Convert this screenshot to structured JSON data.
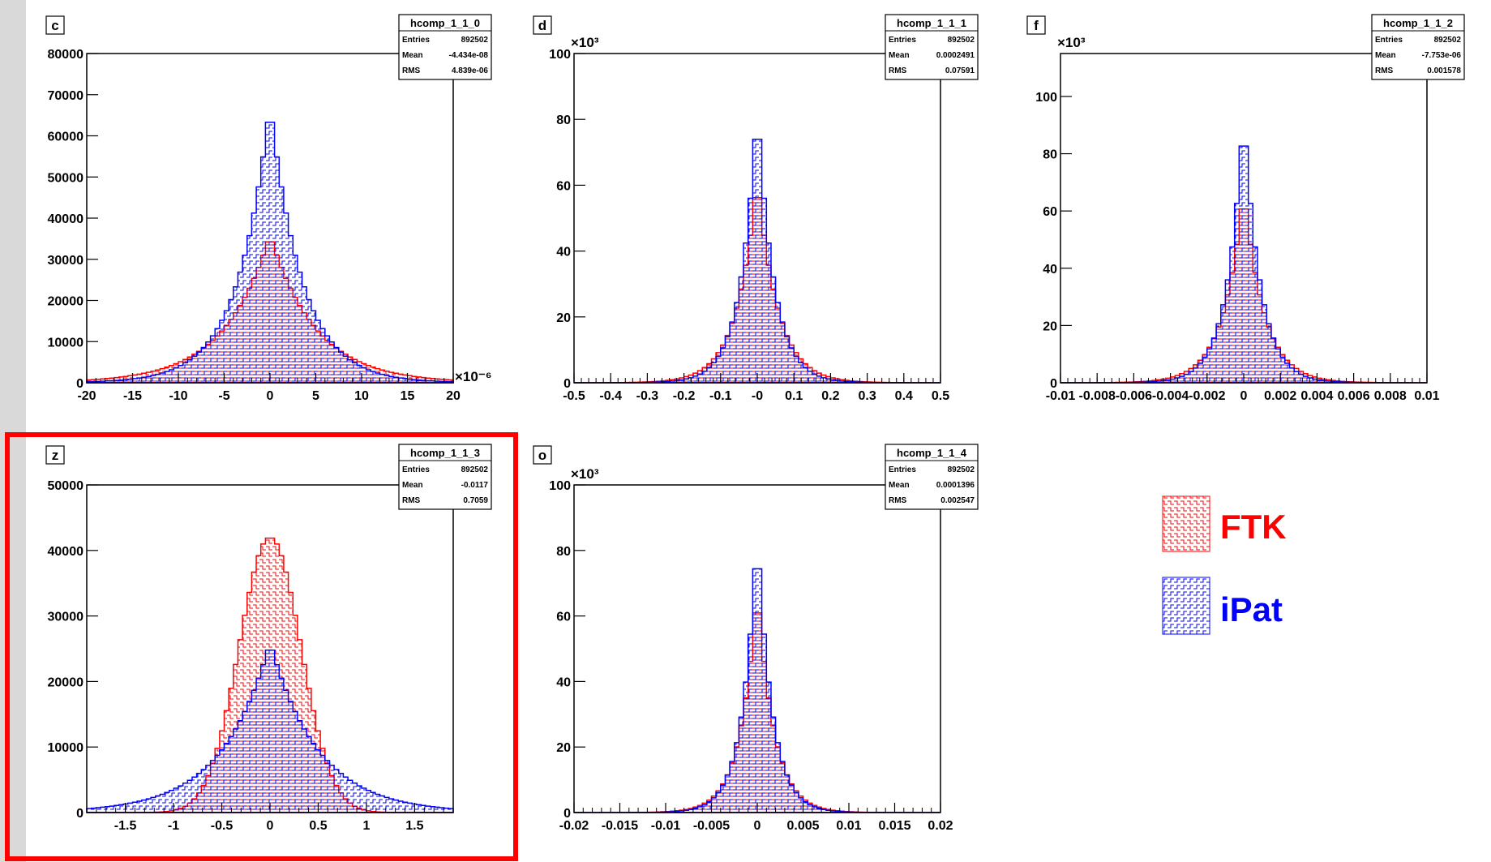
{
  "page": {
    "legend": {
      "items": [
        {
          "label": "FTK",
          "color": "#ff0000"
        },
        {
          "label": "iPat",
          "color": "#0000ff"
        }
      ]
    }
  },
  "chart_data": [
    {
      "type": "histogram",
      "pad_label": "c",
      "stats": {
        "name": "hcomp_1_1_0",
        "entries": "892502",
        "mean": "-4.434e-08",
        "rms": "4.839e-06"
      },
      "xlim": [
        -20,
        20
      ],
      "ylim": [
        0,
        80000
      ],
      "xticks": [
        -20,
        -15,
        -10,
        -5,
        0,
        5,
        10,
        15,
        20
      ],
      "yticks": [
        0,
        10000,
        20000,
        30000,
        40000,
        50000,
        60000,
        70000,
        80000
      ],
      "ytick_labels": [
        "0",
        "10000",
        "20000",
        "30000",
        "40000",
        "50000",
        "60000",
        "70000",
        "80000"
      ],
      "x_exponent": "×10⁻⁶",
      "y_exponent": "",
      "series": [
        {
          "name": "FTK",
          "color": "#ff0000",
          "shape": "laplace",
          "peak": 36000,
          "scale": 5.0
        },
        {
          "name": "iPat",
          "color": "#0000ff",
          "shape": "laplace",
          "peak": 68000,
          "scale": 3.5
        }
      ]
    },
    {
      "type": "histogram",
      "pad_label": "d",
      "stats": {
        "name": "hcomp_1_1_1",
        "entries": "892502",
        "mean": "0.0002491",
        "rms": "0.07591"
      },
      "xlim": [
        -0.5,
        0.5
      ],
      "ylim": [
        0,
        100
      ],
      "xticks": [
        -0.5,
        -0.4,
        -0.3,
        -0.2,
        -0.1,
        0,
        0.1,
        0.2,
        0.3,
        0.4,
        0.5
      ],
      "xtick_labels": [
        "-0.5",
        "-0.4",
        "-0.3",
        "-0.2",
        "-0.1",
        "-0",
        "0.1",
        "0.2",
        "0.3",
        "0.4",
        "0.5"
      ],
      "yticks": [
        0,
        20,
        40,
        60,
        80,
        100
      ],
      "ytick_labels": [
        "0",
        "20",
        "40",
        "60",
        "80",
        "100"
      ],
      "x_exponent": "",
      "y_exponent": "×10³",
      "series": [
        {
          "name": "FTK",
          "color": "#ff0000",
          "shape": "laplace",
          "peak": 63,
          "scale": 0.055
        },
        {
          "name": "iPat",
          "color": "#0000ff",
          "shape": "laplace",
          "peak": 85,
          "scale": 0.045
        }
      ]
    },
    {
      "type": "histogram",
      "pad_label": "f",
      "stats": {
        "name": "hcomp_1_1_2",
        "entries": "892502",
        "mean": "-7.753e-06",
        "rms": "0.001578"
      },
      "xlim": [
        -0.01,
        0.01
      ],
      "ylim": [
        0,
        115
      ],
      "xticks": [
        -0.01,
        -0.008,
        -0.006,
        -0.004,
        -0.002,
        0,
        0.002,
        0.004,
        0.006,
        0.008,
        0.01
      ],
      "xtick_labels": [
        "-0.01",
        "-0.008",
        "-0.006",
        "-0.004",
        "-0.002",
        "0",
        "0.002",
        "0.004",
        "0.006",
        "0.008",
        "0.01"
      ],
      "yticks": [
        0,
        20,
        40,
        60,
        80,
        100
      ],
      "ytick_labels": [
        "0",
        "20",
        "40",
        "60",
        "80",
        "100"
      ],
      "x_exponent": "",
      "y_exponent": "×10³",
      "series": [
        {
          "name": "FTK",
          "color": "#ff0000",
          "shape": "laplace",
          "peak": 68,
          "scale": 0.0011
        },
        {
          "name": "iPat",
          "color": "#0000ff",
          "shape": "laplace",
          "peak": 95,
          "scale": 0.0009
        }
      ]
    },
    {
      "type": "histogram",
      "pad_label": "z",
      "stats": {
        "name": "hcomp_1_1_3",
        "entries": "892502",
        "mean": "-0.0117",
        "rms": "0.7059"
      },
      "xlim": [
        -1.9,
        1.9
      ],
      "ylim": [
        0,
        50000
      ],
      "xticks": [
        -1.5,
        -1,
        -0.5,
        0,
        0.5,
        1,
        1.5
      ],
      "yticks": [
        0,
        10000,
        20000,
        30000,
        40000,
        50000
      ],
      "ytick_labels": [
        "0",
        "10000",
        "20000",
        "30000",
        "40000",
        "50000"
      ],
      "x_exponent": "",
      "y_exponent": "",
      "series": [
        {
          "name": "FTK",
          "color": "#ff0000",
          "shape": "gauss",
          "peak": 42000,
          "scale": 0.32
        },
        {
          "name": "iPat",
          "color": "#0000ff",
          "shape": "laplace",
          "peak": 26000,
          "scale": 0.5
        }
      ]
    },
    {
      "type": "histogram",
      "pad_label": "o",
      "stats": {
        "name": "hcomp_1_1_4",
        "entries": "892502",
        "mean": "0.0001396",
        "rms": "0.002547"
      },
      "xlim": [
        -0.02,
        0.02
      ],
      "ylim": [
        0,
        100
      ],
      "xticks": [
        -0.02,
        -0.015,
        -0.01,
        -0.005,
        0,
        0.005,
        0.01,
        0.015,
        0.02
      ],
      "xtick_labels": [
        "-0.02",
        "-0.015",
        "-0.01",
        "-0.005",
        "0",
        "0.005",
        "0.01",
        "0.015",
        "0.02"
      ],
      "yticks": [
        0,
        20,
        40,
        60,
        80,
        100
      ],
      "ytick_labels": [
        "0",
        "20",
        "40",
        "60",
        "80",
        "100"
      ],
      "x_exponent": "",
      "y_exponent": "×10³",
      "series": [
        {
          "name": "FTK",
          "color": "#ff0000",
          "shape": "laplace",
          "peak": 70,
          "scale": 0.0018
        },
        {
          "name": "iPat",
          "color": "#0000ff",
          "shape": "laplace",
          "peak": 87,
          "scale": 0.0016
        }
      ]
    }
  ]
}
